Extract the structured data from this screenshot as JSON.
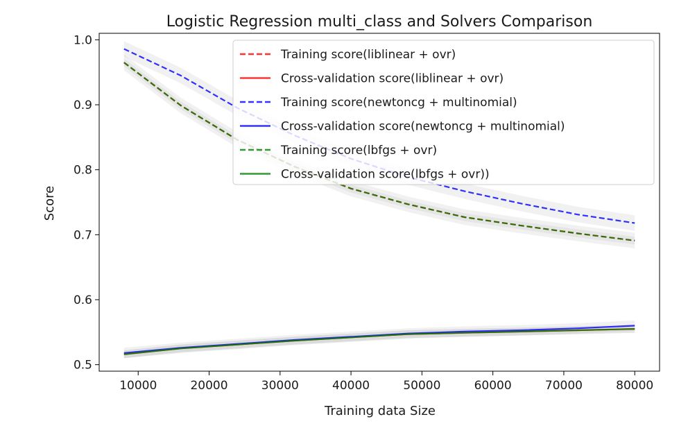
{
  "chart_data": {
    "type": "line",
    "title": "Logistic Regression multi_class and Solvers Comparison",
    "xlabel": "Training data Size",
    "ylabel": "Score",
    "xlim": [
      4500,
      83500
    ],
    "ylim": [
      0.49,
      1.01
    ],
    "xticks": [
      10000,
      20000,
      30000,
      40000,
      50000,
      60000,
      70000,
      80000
    ],
    "yticks": [
      0.5,
      0.6,
      0.7,
      0.8,
      0.9,
      1.0
    ],
    "xtick_labels": [
      "10000",
      "20000",
      "30000",
      "40000",
      "50000",
      "60000",
      "70000",
      "80000"
    ],
    "ytick_labels": [
      "0.5",
      "0.6",
      "0.7",
      "0.8",
      "0.9",
      "1.0"
    ],
    "grid": false,
    "legend_position": "top-right",
    "x": [
      8000,
      16000,
      24000,
      32000,
      40000,
      48000,
      56000,
      64000,
      72000,
      80000
    ],
    "series": [
      {
        "name": "Training score(liblinear + ovr)",
        "color": "#ff0000",
        "dash": true,
        "values": [
          0.965,
          0.899,
          0.846,
          0.805,
          0.771,
          0.747,
          0.727,
          0.714,
          0.702,
          0.691
        ]
      },
      {
        "name": "Cross-validation score(liblinear + ovr)",
        "color": "#ff0000",
        "dash": false,
        "values": [
          0.516,
          0.525,
          0.531,
          0.537,
          0.542,
          0.547,
          0.549,
          0.551,
          0.553,
          0.555
        ]
      },
      {
        "name": "Training score(newtoncg + multinomial)",
        "color": "#0000ff",
        "dash": true,
        "values": [
          0.986,
          0.945,
          0.895,
          0.853,
          0.817,
          0.789,
          0.767,
          0.748,
          0.731,
          0.718
        ]
      },
      {
        "name": "Cross-validation score(newtoncg + multinomial)",
        "color": "#0000ff",
        "dash": false,
        "values": [
          0.518,
          0.526,
          0.532,
          0.538,
          0.543,
          0.548,
          0.551,
          0.553,
          0.556,
          0.56
        ]
      },
      {
        "name": "Training score(lbfgs + ovr)",
        "color": "#008000",
        "dash": true,
        "values": [
          0.965,
          0.899,
          0.846,
          0.805,
          0.771,
          0.747,
          0.727,
          0.714,
          0.702,
          0.691
        ]
      },
      {
        "name": "Cross-validation score(lbfgs + ovr))",
        "color": "#008000",
        "dash": false,
        "values": [
          0.516,
          0.525,
          0.531,
          0.537,
          0.542,
          0.547,
          0.549,
          0.551,
          0.553,
          0.555
        ]
      }
    ]
  }
}
